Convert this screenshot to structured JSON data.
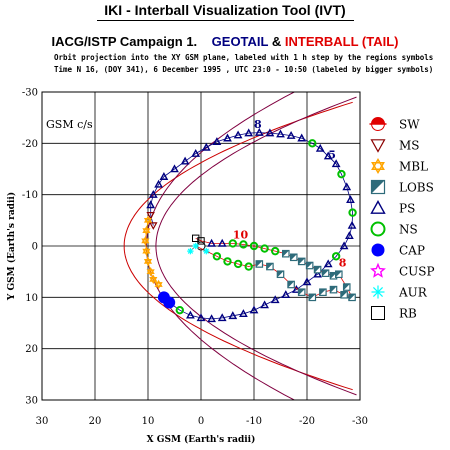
{
  "header": {
    "title": "IKI - Interball Visualization Tool (IVT)",
    "campaign_prefix": "IACG/ISTP Campaign 1.",
    "spacecraft_1": "GEOTAIL",
    "ampersand": "&",
    "spacecraft_2": "INTERBALL (TAIL)",
    "subtitle_line1": "Orbit projection into the XY GSM plane, labeled with 1 h step by the regions symbols",
    "subtitle_line2": "Time N 16, (DOY 341), 6 December 1995 , UTC 23:0 - 10:50 (labeled by bigger symbols)",
    "colors": {
      "geotail": "#000080",
      "interball": "#e00000"
    }
  },
  "chart_data": {
    "type": "scatter",
    "coordinate_label": "GSM c/s",
    "xlabel": "X GSM (Earth's radii)",
    "ylabel": "Y GSM (Earth's radii)",
    "xlim": [
      30,
      -30
    ],
    "ylim": [
      -30,
      30
    ],
    "x_ticks": [
      "30",
      "20",
      "10",
      "0",
      "-10",
      "-20",
      "-30"
    ],
    "y_ticks": [
      "-30",
      "-20",
      "-10",
      "0",
      "10",
      "20",
      "30"
    ],
    "grid": true,
    "legend_position": "right",
    "legend": [
      {
        "label": "SW",
        "symbol": "half-sun",
        "color": "#e00000"
      },
      {
        "label": "MS",
        "symbol": "triangle-down",
        "color": "#8b0000"
      },
      {
        "label": "MBL",
        "symbol": "star-of-david",
        "color": "#ffa500"
      },
      {
        "label": "LOBS",
        "symbol": "half-square",
        "color": "#2e6b7a"
      },
      {
        "label": "PS",
        "symbol": "triangle-up",
        "color": "#000080"
      },
      {
        "label": "NS",
        "symbol": "circle-open",
        "color": "#00c000"
      },
      {
        "label": "CAP",
        "symbol": "circle-filled",
        "color": "#0000ff"
      },
      {
        "label": "CUSP",
        "symbol": "star",
        "color": "#ff00ff"
      },
      {
        "label": "AUR",
        "symbol": "asterisk",
        "color": "#00ffff"
      },
      {
        "label": "RB",
        "symbol": "square-open",
        "color": "#000000"
      }
    ],
    "annotations": [
      {
        "text": "10",
        "x": -6,
        "y": -1.5,
        "color": "#e00000"
      },
      {
        "text": "8",
        "x": -26,
        "y": 4,
        "color": "#e00000"
      },
      {
        "text": "8",
        "x": -10,
        "y": -23,
        "color": "#000080"
      },
      {
        "text": "5",
        "x": -24,
        "y": -17,
        "color": "#000080"
      }
    ],
    "series": [
      {
        "name": "GEOTAIL",
        "color": "#000080",
        "points": [
          {
            "x": 9,
            "y": -4,
            "region": "MS"
          },
          {
            "x": 9.5,
            "y": -6,
            "region": "MS"
          },
          {
            "x": 9.5,
            "y": -8,
            "region": "PS"
          },
          {
            "x": 9,
            "y": -10,
            "region": "PS"
          },
          {
            "x": 8,
            "y": -12,
            "region": "PS"
          },
          {
            "x": 7,
            "y": -13.5,
            "region": "PS"
          },
          {
            "x": 5,
            "y": -15,
            "region": "PS"
          },
          {
            "x": 3,
            "y": -16.5,
            "region": "PS"
          },
          {
            "x": 1,
            "y": -18,
            "region": "PS"
          },
          {
            "x": -1,
            "y": -19.2,
            "region": "PS"
          },
          {
            "x": -3,
            "y": -20.3,
            "region": "PS"
          },
          {
            "x": -5,
            "y": -21,
            "region": "PS"
          },
          {
            "x": -7,
            "y": -21.6,
            "region": "PS"
          },
          {
            "x": -9,
            "y": -22,
            "region": "PS"
          },
          {
            "x": -11,
            "y": -22.1,
            "region": "PS"
          },
          {
            "x": -13,
            "y": -22,
            "region": "PS"
          },
          {
            "x": -15,
            "y": -21.8,
            "region": "PS"
          },
          {
            "x": -17,
            "y": -21.5,
            "region": "PS"
          },
          {
            "x": -19,
            "y": -21,
            "region": "PS"
          },
          {
            "x": -21,
            "y": -20,
            "region": "NS"
          },
          {
            "x": -22.5,
            "y": -19,
            "region": "PS"
          },
          {
            "x": -24,
            "y": -17.5,
            "region": "PS"
          },
          {
            "x": -25.5,
            "y": -16,
            "region": "PS"
          },
          {
            "x": -26.5,
            "y": -14,
            "region": "NS"
          },
          {
            "x": -27.5,
            "y": -11.5,
            "region": "PS"
          },
          {
            "x": -28.2,
            "y": -9,
            "region": "PS"
          },
          {
            "x": -28.6,
            "y": -6.5,
            "region": "NS"
          },
          {
            "x": -28.5,
            "y": -4,
            "region": "PS"
          },
          {
            "x": -28,
            "y": -2,
            "region": "PS"
          },
          {
            "x": -27,
            "y": 0,
            "region": "PS"
          },
          {
            "x": -25.5,
            "y": 2,
            "region": "NS"
          },
          {
            "x": -24,
            "y": 3.5,
            "region": "PS"
          },
          {
            "x": -22,
            "y": 5.5,
            "region": "PS"
          },
          {
            "x": -20,
            "y": 7,
            "region": "PS"
          },
          {
            "x": -18,
            "y": 8.5,
            "region": "PS"
          },
          {
            "x": -16,
            "y": 9.5,
            "region": "PS"
          },
          {
            "x": -14,
            "y": 10.5,
            "region": "PS"
          },
          {
            "x": -12,
            "y": 11.5,
            "region": "PS"
          },
          {
            "x": -10,
            "y": 12.5,
            "region": "PS"
          },
          {
            "x": -8,
            "y": 13.2,
            "region": "PS"
          },
          {
            "x": -6,
            "y": 13.6,
            "region": "PS"
          },
          {
            "x": -4,
            "y": 14,
            "region": "PS"
          },
          {
            "x": -2,
            "y": 14.2,
            "region": "PS"
          },
          {
            "x": 0,
            "y": 14,
            "region": "PS"
          },
          {
            "x": 2,
            "y": 13.5,
            "region": "PS"
          },
          {
            "x": 4,
            "y": 12.5,
            "region": "NS"
          },
          {
            "x": 6,
            "y": 11,
            "region": "CAP"
          },
          {
            "x": 7,
            "y": 10,
            "region": "CAP"
          }
        ]
      },
      {
        "name": "INTERBALL (TAIL)",
        "color": "#e00000",
        "points": [
          {
            "x": 1,
            "y": -1.5,
            "region": "RB"
          },
          {
            "x": 0,
            "y": -1,
            "region": "RB"
          },
          {
            "x": -2,
            "y": -0.5,
            "region": "PS"
          },
          {
            "x": -4,
            "y": -0.5,
            "region": "PS"
          },
          {
            "x": -6,
            "y": -0.5,
            "region": "NS"
          },
          {
            "x": -8,
            "y": -0.3,
            "region": "NS"
          },
          {
            "x": -10,
            "y": 0,
            "region": "NS"
          },
          {
            "x": -12,
            "y": 0.5,
            "region": "NS"
          },
          {
            "x": -14,
            "y": 1,
            "region": "NS"
          },
          {
            "x": -16,
            "y": 1.5,
            "region": "LOBS"
          },
          {
            "x": -17.5,
            "y": 2.2,
            "region": "LOBS"
          },
          {
            "x": -19,
            "y": 3,
            "region": "LOBS"
          },
          {
            "x": -20.5,
            "y": 3.8,
            "region": "LOBS"
          },
          {
            "x": -22,
            "y": 4.6,
            "region": "LOBS"
          },
          {
            "x": -23.5,
            "y": 5.3,
            "region": "LOBS"
          },
          {
            "x": -25,
            "y": 5.8,
            "region": "LOBS"
          },
          {
            "x": -26,
            "y": 5.5,
            "region": "LOBS"
          },
          {
            "x": -27.5,
            "y": 8,
            "region": "LOBS"
          },
          {
            "x": -28.5,
            "y": 10,
            "region": "LOBS"
          },
          {
            "x": -27,
            "y": 9.5,
            "region": "LOBS"
          },
          {
            "x": -25,
            "y": 8.5,
            "region": "LOBS"
          },
          {
            "x": -23,
            "y": 9,
            "region": "LOBS"
          },
          {
            "x": -21,
            "y": 10,
            "region": "LOBS"
          },
          {
            "x": -19,
            "y": 9,
            "region": "LOBS"
          },
          {
            "x": -17,
            "y": 7.5,
            "region": "LOBS"
          },
          {
            "x": -15,
            "y": 5.5,
            "region": "LOBS"
          },
          {
            "x": -13,
            "y": 4,
            "region": "LOBS"
          },
          {
            "x": -11,
            "y": 3.5,
            "region": "LOBS"
          },
          {
            "x": -9,
            "y": 4,
            "region": "NS"
          },
          {
            "x": -7,
            "y": 3.5,
            "region": "NS"
          },
          {
            "x": -5,
            "y": 3,
            "region": "NS"
          },
          {
            "x": -3,
            "y": 2,
            "region": "NS"
          },
          {
            "x": -1,
            "y": 1,
            "region": "AUR"
          },
          {
            "x": 1,
            "y": 0,
            "region": "AUR"
          },
          {
            "x": 2,
            "y": 1,
            "region": "AUR"
          }
        ]
      },
      {
        "name": "MBL/MS dayside segment",
        "color": "#ffa500",
        "points": [
          {
            "x": 10,
            "y": -5,
            "region": "MBL"
          },
          {
            "x": 10.3,
            "y": -3,
            "region": "MBL"
          },
          {
            "x": 10.5,
            "y": -1,
            "region": "MBL"
          },
          {
            "x": 10.3,
            "y": 1,
            "region": "MBL"
          },
          {
            "x": 10,
            "y": 3,
            "region": "MBL"
          },
          {
            "x": 9.5,
            "y": 5,
            "region": "MBL"
          },
          {
            "x": 9,
            "y": 6.5,
            "region": "MBL"
          },
          {
            "x": 8,
            "y": 7.5,
            "region": "MBL"
          }
        ]
      }
    ],
    "model_curves": [
      {
        "name": "bow shock",
        "color": "#cc0000"
      },
      {
        "name": "magnetopause",
        "color": "#800040"
      }
    ]
  }
}
